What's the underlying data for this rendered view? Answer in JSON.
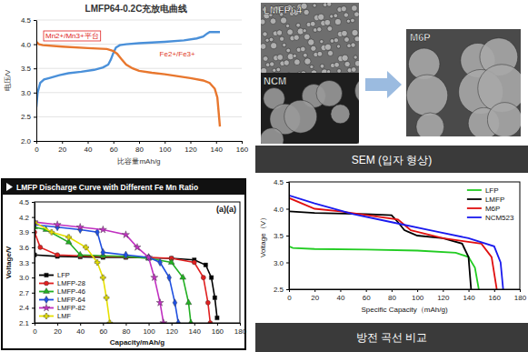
{
  "chart_data": [
    {
      "type": "line",
      "title": "LMFP64-0.2C充放电曲线",
      "x_label": "比容量mAh/g",
      "y_label": "电压/V",
      "xlim": [
        0,
        160
      ],
      "xticks": [
        0,
        20,
        40,
        60,
        80,
        100,
        120,
        140,
        160
      ],
      "ylim": [
        2,
        4.5
      ],
      "yticks": [
        {
          "value": 2,
          "label": "2.0"
        },
        2.5,
        {
          "value": 3,
          "label": "3.0"
        },
        3.5,
        {
          "value": 4,
          "label": "4.0"
        },
        4.5
      ],
      "grid": true,
      "annotations": [
        "Mn2+/Mn3+平台",
        "Fe2+/Fe3+"
      ],
      "series": [
        {
          "color": "#4a90d9",
          "x": [
            0,
            1,
            3,
            6,
            10,
            18,
            25,
            35,
            45,
            52,
            56,
            58,
            60,
            62,
            65,
            70,
            80,
            100,
            115,
            125,
            130,
            133,
            135,
            143
          ],
          "values": [
            2.7,
            3.0,
            3.2,
            3.27,
            3.3,
            3.36,
            3.4,
            3.43,
            3.47,
            3.52,
            3.58,
            3.68,
            3.82,
            3.93,
            3.98,
            4.0,
            4.02,
            4.05,
            4.08,
            4.12,
            4.16,
            4.22,
            4.25,
            4.25
          ]
        },
        {
          "color": "#e8772e",
          "x": [
            0,
            2,
            5,
            20,
            40,
            55,
            60,
            63,
            66,
            70,
            75,
            80,
            90,
            100,
            120,
            130,
            135,
            139,
            141,
            142,
            143
          ],
          "values": [
            4.05,
            4.0,
            3.98,
            3.95,
            3.92,
            3.9,
            3.86,
            3.8,
            3.7,
            3.58,
            3.5,
            3.45,
            3.41,
            3.38,
            3.3,
            3.25,
            3.2,
            3.08,
            2.9,
            2.6,
            2.3
          ]
        }
      ]
    },
    {
      "type": "line",
      "title": "LMFP Discharge Curve with Different Fe Mn Ratio",
      "x_label": "Capacity/mAh/g",
      "y_label": "Voltage/V",
      "xlim": [
        0,
        180
      ],
      "xticks": [
        0,
        20,
        40,
        60,
        80,
        100,
        120,
        140,
        160,
        180
      ],
      "ylim": [
        2.1,
        4.5
      ],
      "yticks": [
        2.1,
        2.4,
        2.7,
        {
          "value": 3,
          "label": "3.0"
        },
        3.3,
        3.6,
        3.9,
        4.2,
        4.5
      ],
      "grid": false,
      "legend": "lower left",
      "annotations": [
        "(a)(a)"
      ],
      "series": [
        {
          "name": "LFP",
          "color": "#000000",
          "marker": "square",
          "x": [
            0,
            20,
            40,
            60,
            80,
            100,
            120,
            140,
            150,
            155,
            158,
            160
          ],
          "values": [
            3.45,
            3.42,
            3.41,
            3.4,
            3.4,
            3.39,
            3.38,
            3.35,
            3.25,
            3.0,
            2.6,
            2.2
          ]
        },
        {
          "name": "LMFP-28",
          "color": "#e02020",
          "marker": "circle",
          "x": [
            0,
            5,
            20,
            40,
            60,
            80,
            100,
            120,
            140,
            148,
            152,
            154
          ],
          "values": [
            3.9,
            3.6,
            3.45,
            3.43,
            3.42,
            3.41,
            3.4,
            3.38,
            3.3,
            3.0,
            2.5,
            2.1
          ]
        },
        {
          "name": "LMFP-46",
          "color": "#22b022",
          "marker": "triangle",
          "x": [
            0,
            10,
            30,
            40,
            60,
            80,
            100,
            120,
            130,
            135,
            137
          ],
          "values": [
            4.0,
            3.95,
            3.7,
            3.45,
            3.43,
            3.42,
            3.38,
            3.3,
            3.0,
            2.5,
            2.1
          ]
        },
        {
          "name": "LMFP-64",
          "color": "#2050e0",
          "marker": "diamond",
          "x": [
            0,
            20,
            40,
            55,
            60,
            80,
            100,
            110,
            118,
            123,
            126
          ],
          "values": [
            4.05,
            4.0,
            3.95,
            3.9,
            3.5,
            3.45,
            3.4,
            3.3,
            3.0,
            2.5,
            2.1
          ]
        },
        {
          "name": "LMFP-82",
          "color": "#c030c0",
          "marker": "star",
          "x": [
            0,
            20,
            40,
            60,
            80,
            90,
            100,
            105,
            110,
            113
          ],
          "values": [
            4.1,
            4.05,
            4.0,
            3.95,
            3.85,
            3.6,
            3.4,
            3.0,
            2.5,
            2.1
          ]
        },
        {
          "name": "LMF",
          "color": "#e6e000",
          "marker": "cross",
          "x": [
            0,
            15,
            30,
            45,
            55,
            60,
            63,
            66
          ],
          "values": [
            4.1,
            3.9,
            3.8,
            3.6,
            3.3,
            3.0,
            2.6,
            2.1
          ]
        }
      ]
    },
    {
      "type": "line",
      "x_label": "Specific Capacity（mAh/g)",
      "y_label": "Voltage（V）",
      "caption": "방전 곡선 비교",
      "xlim": [
        0,
        180
      ],
      "xticks": [
        0,
        20,
        40,
        60,
        80,
        100,
        120,
        140,
        160,
        180
      ],
      "ylim": [
        2.5,
        4.5
      ],
      "yticks": [
        2.5,
        {
          "value": 3,
          "label": "3.0"
        },
        3.5,
        {
          "value": 4,
          "label": "4.0"
        },
        4.5
      ],
      "grid": false,
      "legend": "upper right",
      "series": [
        {
          "name": "LFP",
          "color": "#22cc22",
          "x": [
            0,
            3,
            20,
            60,
            100,
            130,
            140,
            145,
            148
          ],
          "values": [
            3.3,
            3.27,
            3.25,
            3.24,
            3.22,
            3.18,
            3.1,
            2.9,
            2.5
          ]
        },
        {
          "name": "LMFP",
          "color": "#000000",
          "x": [
            0,
            20,
            60,
            80,
            85,
            90,
            100,
            120,
            135,
            140,
            142
          ],
          "values": [
            3.95,
            3.92,
            3.9,
            3.88,
            3.75,
            3.6,
            3.5,
            3.45,
            3.35,
            3.1,
            2.5
          ]
        },
        {
          "name": "M6P",
          "color": "#e01010",
          "x": [
            0,
            20,
            40,
            70,
            85,
            90,
            95,
            120,
            150,
            158,
            162
          ],
          "values": [
            4.2,
            4.0,
            3.95,
            3.85,
            3.8,
            3.7,
            3.6,
            3.45,
            3.35,
            3.1,
            2.5
          ]
        },
        {
          "name": "NCM523",
          "color": "#1a1aee",
          "x": [
            0,
            20,
            50,
            80,
            110,
            140,
            160,
            165,
            167
          ],
          "values": [
            4.25,
            4.1,
            3.9,
            3.75,
            3.6,
            3.45,
            3.3,
            3.0,
            2.5
          ]
        }
      ]
    }
  ],
  "sem_panel": {
    "labels": [
      "LMFP64",
      "NCM",
      "M6P"
    ],
    "caption": "SEM (입자 형상)"
  }
}
